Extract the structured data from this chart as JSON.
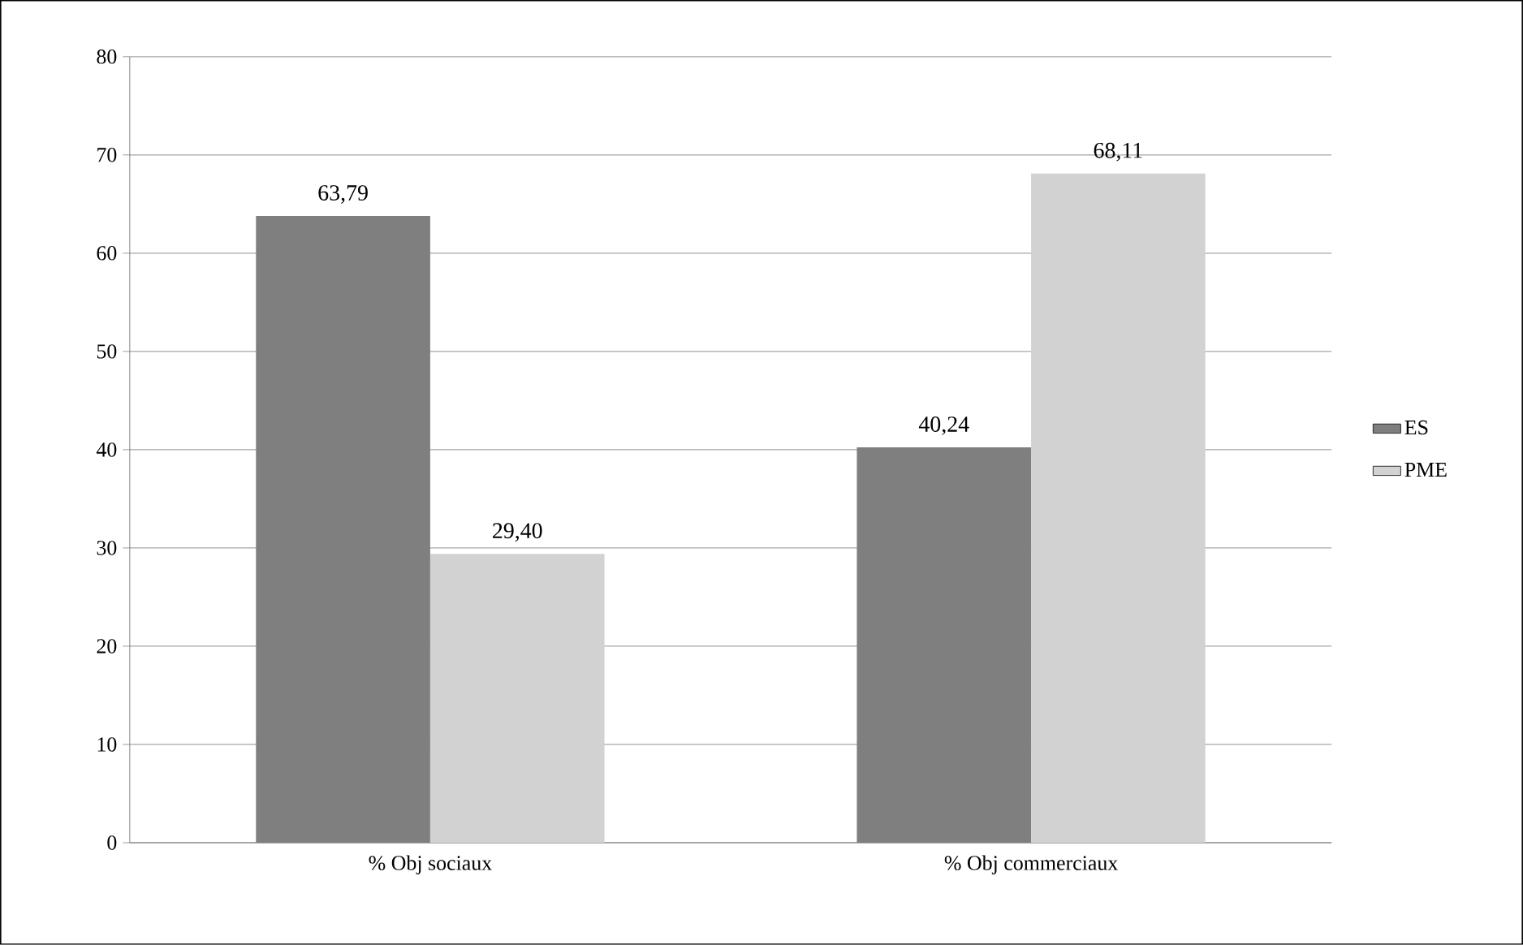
{
  "chart_data": {
    "type": "bar",
    "categories": [
      "% Obj sociaux",
      "% Obj commerciaux"
    ],
    "series": [
      {
        "name": "ES",
        "color": "#7f7f7f",
        "values": [
          63.79,
          40.24
        ],
        "value_labels": [
          "63,79",
          "40,24"
        ]
      },
      {
        "name": "PME",
        "color": "#d2d2d2",
        "values": [
          29.4,
          68.11
        ],
        "value_labels": [
          "29,40",
          "68,11"
        ]
      }
    ],
    "ylim": [
      0,
      80
    ],
    "yticks": [
      0,
      10,
      20,
      30,
      40,
      50,
      60,
      70,
      80
    ],
    "grid": "y",
    "legend": "right"
  }
}
